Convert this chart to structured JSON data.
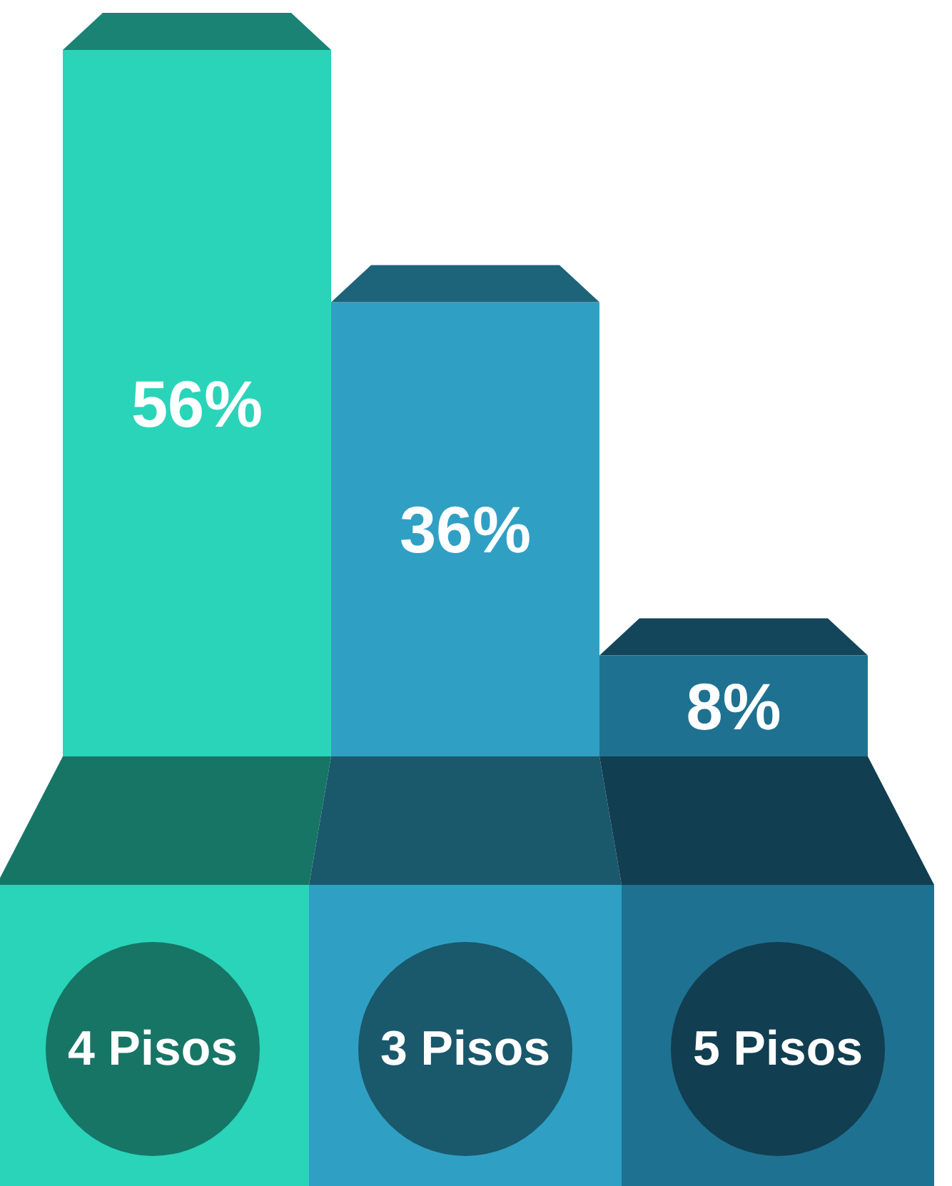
{
  "chart_data": {
    "type": "bar",
    "categories": [
      "4 Pisos",
      "3 Pisos",
      "5 Pisos"
    ],
    "values": [
      56,
      36,
      8
    ],
    "value_labels": [
      "56%",
      "36%",
      "8%"
    ],
    "colors": [
      "#2ad4b9",
      "#2fa0c4",
      "#1f7191"
    ],
    "grid": false,
    "legend": false
  }
}
